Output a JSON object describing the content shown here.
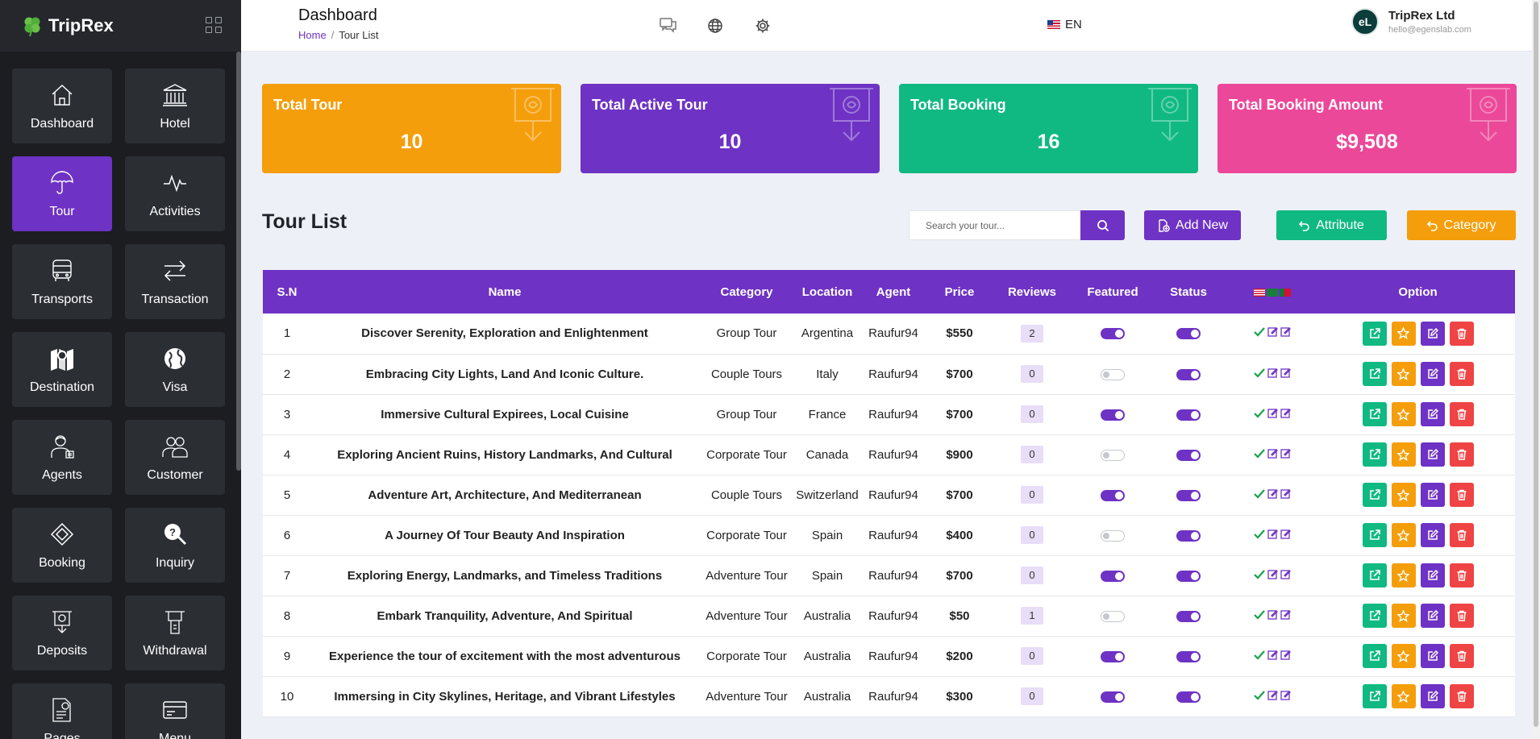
{
  "brand": {
    "name": "TripRex"
  },
  "sidebar": {
    "items": [
      {
        "label": "Dashboard",
        "icon": "home-icon"
      },
      {
        "label": "Hotel",
        "icon": "hotel-icon"
      },
      {
        "label": "Tour",
        "icon": "umbrella-icon",
        "active": true
      },
      {
        "label": "Activities",
        "icon": "activity-icon"
      },
      {
        "label": "Transports",
        "icon": "bus-icon"
      },
      {
        "label": "Transaction",
        "icon": "transaction-icon"
      },
      {
        "label": "Destination",
        "icon": "map-pin-icon"
      },
      {
        "label": "Visa",
        "icon": "globe-icon"
      },
      {
        "label": "Agents",
        "icon": "agent-icon"
      },
      {
        "label": "Customer",
        "icon": "customer-icon"
      },
      {
        "label": "Booking",
        "icon": "booking-icon"
      },
      {
        "label": "Inquiry",
        "icon": "inquiry-icon"
      },
      {
        "label": "Deposits",
        "icon": "deposit-icon"
      },
      {
        "label": "Withdrawal",
        "icon": "withdrawal-icon"
      },
      {
        "label": "Pages",
        "icon": "pages-icon"
      },
      {
        "label": "Menu",
        "icon": "menu-icon"
      }
    ]
  },
  "header": {
    "title": "Dashboard",
    "breadcrumb": {
      "home": "Home",
      "separator": "/",
      "current": "Tour List"
    },
    "language": "EN",
    "user": {
      "avatar_initials": "eL",
      "name": "TripRex Ltd",
      "email": "hello@egenslab.com"
    }
  },
  "stats": [
    {
      "title": "Total Tour",
      "value": "10",
      "color": "#f59e0b"
    },
    {
      "title": "Total Active Tour",
      "value": "10",
      "color": "#6e32c4"
    },
    {
      "title": "Total Booking",
      "value": "16",
      "color": "#10b981"
    },
    {
      "title": "Total Booking Amount",
      "value": "$9,508",
      "color": "#ec4899"
    }
  ],
  "tour_list": {
    "title": "Tour List",
    "search_placeholder": "Search your tour...",
    "add_new_label": "Add New",
    "attribute_label": "Attribute",
    "category_label": "Category",
    "columns": [
      "S.N",
      "Name",
      "Category",
      "Location",
      "Agent",
      "Price",
      "Reviews",
      "Featured",
      "Status",
      "",
      "Option"
    ],
    "rows": [
      {
        "sn": "1",
        "name": "Discover Serenity, Exploration and Enlightenment",
        "category": "Group Tour",
        "location": "Argentina",
        "agent": "Raufur94",
        "price": "$550",
        "reviews": "2",
        "featured": true,
        "status": true
      },
      {
        "sn": "2",
        "name": "Embracing City Lights, Land And Iconic Culture.",
        "category": "Couple Tours",
        "location": "Italy",
        "agent": "Raufur94",
        "price": "$700",
        "reviews": "0",
        "featured": false,
        "status": true
      },
      {
        "sn": "3",
        "name": "Immersive Cultural Expirees, Local Cuisine",
        "category": "Group Tour",
        "location": "France",
        "agent": "Raufur94",
        "price": "$700",
        "reviews": "0",
        "featured": true,
        "status": true
      },
      {
        "sn": "4",
        "name": "Exploring Ancient Ruins, History Landmarks, And Cultural",
        "category": "Corporate Tour",
        "location": "Canada",
        "agent": "Raufur94",
        "price": "$900",
        "reviews": "0",
        "featured": false,
        "status": true
      },
      {
        "sn": "5",
        "name": "Adventure Art, Architecture, And Mediterranean",
        "category": "Couple Tours",
        "location": "Switzerland",
        "agent": "Raufur94",
        "price": "$700",
        "reviews": "0",
        "featured": true,
        "status": true
      },
      {
        "sn": "6",
        "name": "A Journey Of Tour Beauty And Inspiration",
        "category": "Corporate Tour",
        "location": "Spain",
        "agent": "Raufur94",
        "price": "$400",
        "reviews": "0",
        "featured": false,
        "status": true
      },
      {
        "sn": "7",
        "name": "Exploring Energy, Landmarks, and Timeless Traditions",
        "category": "Adventure Tour",
        "location": "Spain",
        "agent": "Raufur94",
        "price": "$700",
        "reviews": "0",
        "featured": true,
        "status": true
      },
      {
        "sn": "8",
        "name": "Embark Tranquility, Adventure, And Spiritual",
        "category": "Adventure Tour",
        "location": "Australia",
        "agent": "Raufur94",
        "price": "$50",
        "reviews": "1",
        "featured": false,
        "status": true
      },
      {
        "sn": "9",
        "name": "Experience the tour of excitement with the most adventurous",
        "category": "Corporate Tour",
        "location": "Australia",
        "agent": "Raufur94",
        "price": "$200",
        "reviews": "0",
        "featured": true,
        "status": true
      },
      {
        "sn": "10",
        "name": "Immersing in City Skylines, Heritage, and Vibrant Lifestyles",
        "category": "Adventure Tour",
        "location": "Australia",
        "agent": "Raufur94",
        "price": "$300",
        "reviews": "0",
        "featured": true,
        "status": true
      }
    ]
  },
  "colors": {
    "primary": "#6e32c4",
    "success": "#10b981",
    "warning": "#f59e0b",
    "danger": "#ef4444",
    "sidebar_bg": "#1b1d21"
  }
}
